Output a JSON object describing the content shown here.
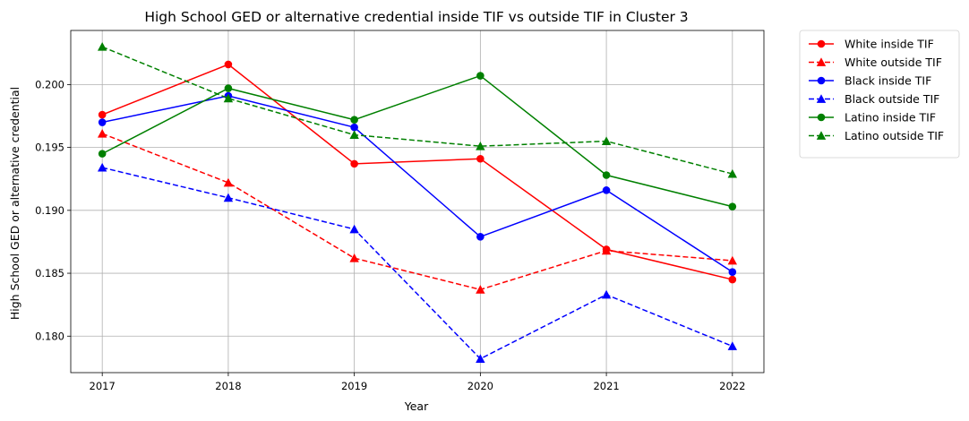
{
  "chart_data": {
    "type": "line",
    "title": "High School GED or alternative credential inside TIF vs outside TIF in Cluster 3",
    "xlabel": "Year",
    "ylabel": "High School GED or alternative credential",
    "x": [
      2017,
      2018,
      2019,
      2020,
      2021,
      2022
    ],
    "x_tick_labels": [
      "2017",
      "2018",
      "2019",
      "2020",
      "2021",
      "2022"
    ],
    "xlim": [
      2016.75,
      2022.25
    ],
    "ylim": [
      0.1771,
      0.2043
    ],
    "y_ticks": [
      0.18,
      0.185,
      0.19,
      0.195,
      0.2
    ],
    "y_tick_labels": [
      "0.180",
      "0.185",
      "0.190",
      "0.195",
      "0.200"
    ],
    "grid": true,
    "legend_position": "outside-top-right",
    "series": [
      {
        "name": "White inside TIF",
        "color": "#ff0000",
        "dashed": false,
        "marker": "circle",
        "values": [
          0.1976,
          0.2016,
          0.1937,
          0.1941,
          0.1869,
          0.1845
        ]
      },
      {
        "name": "White outside TIF",
        "color": "#ff0000",
        "dashed": true,
        "marker": "triangle",
        "values": [
          0.1961,
          0.1922,
          0.1862,
          0.1837,
          0.1868,
          0.186
        ]
      },
      {
        "name": "Black inside TIF",
        "color": "#0000ff",
        "dashed": false,
        "marker": "circle",
        "values": [
          0.197,
          0.1991,
          0.1966,
          0.1879,
          0.1916,
          0.1851
        ]
      },
      {
        "name": "Black outside TIF",
        "color": "#0000ff",
        "dashed": true,
        "marker": "triangle",
        "values": [
          0.1934,
          0.191,
          0.1885,
          0.1782,
          0.1833,
          0.1792
        ]
      },
      {
        "name": "Latino inside TIF",
        "color": "#008000",
        "dashed": false,
        "marker": "circle",
        "values": [
          0.1945,
          0.1997,
          0.1972,
          0.2007,
          0.1928,
          0.1903
        ]
      },
      {
        "name": "Latino outside TIF",
        "color": "#008000",
        "dashed": true,
        "marker": "triangle",
        "values": [
          0.203,
          0.1989,
          0.196,
          0.1951,
          0.1955,
          0.1929
        ]
      }
    ]
  }
}
